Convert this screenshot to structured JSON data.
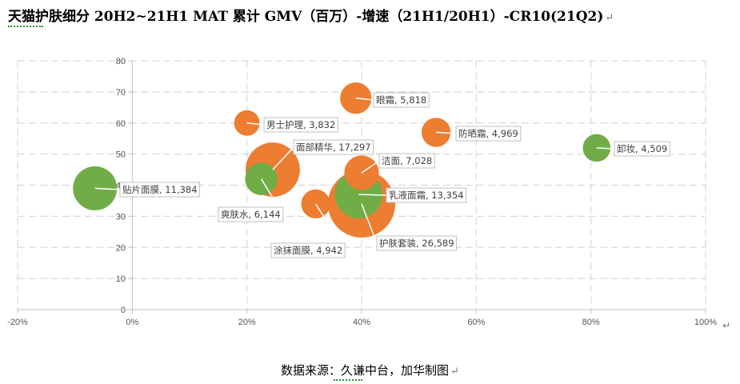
{
  "header": {
    "title": "天猫护肤细分 20H2~21H1 MAT 累计 GMV（百万）-增速（21H1/20H1）-CR10(21Q2)"
  },
  "footer": {
    "source": "数据来源：久谦中台，加华制图"
  },
  "colors": {
    "orange": "#ED7D31",
    "green": "#70AD47"
  },
  "chart_data": {
    "type": "bubble",
    "xlim": [
      -0.2,
      1.0
    ],
    "ylim": [
      0,
      80
    ],
    "x_ticks": [
      "-20%",
      "0%",
      "20%",
      "40%",
      "60%",
      "80%",
      "100%"
    ],
    "y_ticks": [
      "0",
      "10",
      "20",
      "30",
      "40",
      "50",
      "60",
      "70",
      "80"
    ],
    "grid": true,
    "points": [
      {
        "name": "眼霜",
        "size": 5818,
        "x": 0.39,
        "y": 68,
        "color": "orange",
        "label": "眼霜, 5,818"
      },
      {
        "name": "男士护理",
        "size": 3832,
        "x": 0.2,
        "y": 60,
        "color": "orange",
        "label": "男士护理, 3,832"
      },
      {
        "name": "防晒霜",
        "size": 4969,
        "x": 0.53,
        "y": 57,
        "color": "orange",
        "label": "防晒霜, 4,969"
      },
      {
        "name": "卸妆",
        "size": 4509,
        "x": 0.81,
        "y": 52,
        "color": "green",
        "label": "卸妆, 4,509"
      },
      {
        "name": "护肤套装",
        "size": 26589,
        "x": 0.4,
        "y": 34,
        "color": "orange",
        "label": "护肤套装, 26,589"
      },
      {
        "name": "面部精华",
        "size": 17297,
        "x": 0.245,
        "y": 45,
        "color": "orange",
        "label": "面部精华, 17,297"
      },
      {
        "name": "洁面",
        "size": 7028,
        "x": 0.4,
        "y": 44,
        "color": "orange",
        "label": "洁面, 7,028"
      },
      {
        "name": "涂抹面膜",
        "size": 4942,
        "x": 0.32,
        "y": 34,
        "color": "orange",
        "label": "涂抹面膜, 4,942"
      },
      {
        "name": "乳液面霜",
        "size": 13354,
        "x": 0.395,
        "y": 37,
        "color": "green",
        "label": "乳液面霜, 13,354"
      },
      {
        "name": "贴片面膜",
        "size": 11384,
        "x": -0.065,
        "y": 39,
        "color": "green",
        "label": "贴片面膜, 11,384"
      },
      {
        "name": "爽肤水",
        "size": 6144,
        "x": 0.225,
        "y": 42,
        "color": "green",
        "label": "爽肤水, 6,144"
      }
    ]
  }
}
